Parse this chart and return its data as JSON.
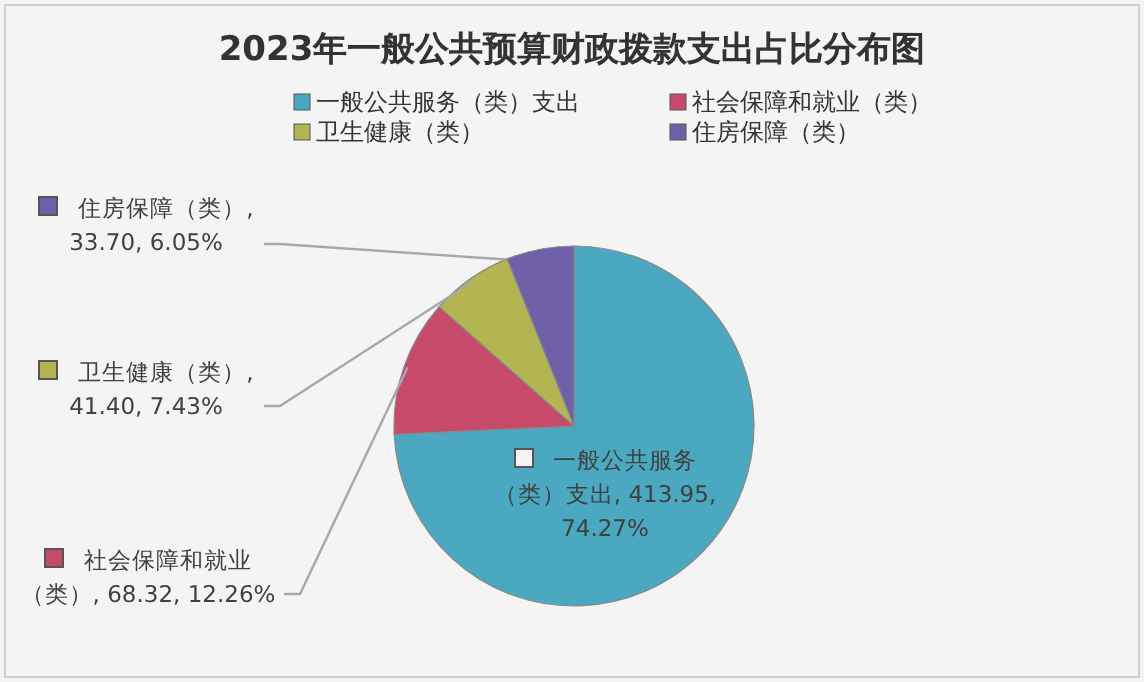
{
  "chart_data": {
    "type": "pie",
    "title": "2023年一般公共预算财政拨款支出占比分布图",
    "categories": [
      "一般公共服务（类）支出",
      "社会保障和就业（类）",
      "卫生健康（类）",
      "住房保障（类）"
    ],
    "values": [
      413.95,
      68.32,
      41.4,
      33.7
    ],
    "colors": [
      "#4aa8c0",
      "#c84a6a",
      "#b3b552",
      "#7060a8"
    ],
    "value_labels": [
      "一般公共服务（类）支出, 413.95, 74.27%",
      "社会保障和就业（类）, 68.32, 12.26%",
      "卫生健康（类）, 41.40, 7.43%",
      "住房保障（类）, 33.70, 6.05%"
    ],
    "legend": "top"
  }
}
